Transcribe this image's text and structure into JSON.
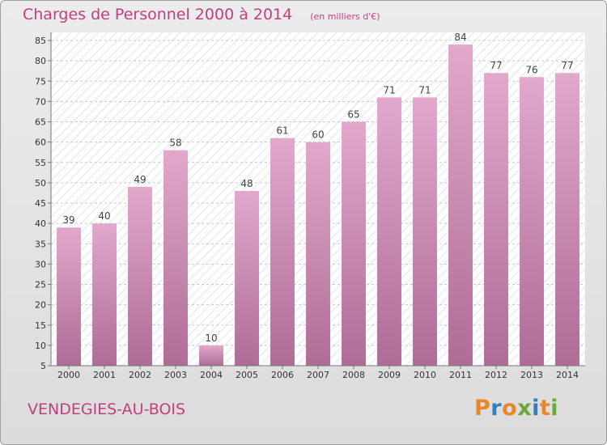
{
  "header": {
    "title": "Charges de Personnel 2000 à 2014",
    "subtitle": "(en milliers d'€)"
  },
  "footer": {
    "place": "VENDEGIES-AU-BOIS",
    "logo": "Proxiti"
  },
  "colors": {
    "accent": "#c0407f",
    "bar_top": "#e2a8cc",
    "bar_bottom": "#ae6c96",
    "logo_letters": [
      "#e8862a",
      "#2f7fc1",
      "#e8862a",
      "#6aa839",
      "#2f7fc1",
      "#e8862a",
      "#6aa839"
    ]
  },
  "chart_data": {
    "type": "bar",
    "title": "Charges de Personnel 2000 à 2014",
    "subtitle": "(en milliers d'€)",
    "categories": [
      "2000",
      "2001",
      "2002",
      "2003",
      "2004",
      "2005",
      "2006",
      "2007",
      "2008",
      "2009",
      "2010",
      "2011",
      "2012",
      "2013",
      "2014"
    ],
    "values": [
      39,
      40,
      49,
      58,
      10,
      48,
      61,
      60,
      65,
      71,
      71,
      84,
      77,
      76,
      77
    ],
    "ylim": [
      5,
      87
    ],
    "yticks": [
      5,
      10,
      15,
      20,
      25,
      30,
      35,
      40,
      45,
      50,
      55,
      60,
      65,
      70,
      75,
      80,
      85
    ],
    "grid": true,
    "data_labels": true
  }
}
